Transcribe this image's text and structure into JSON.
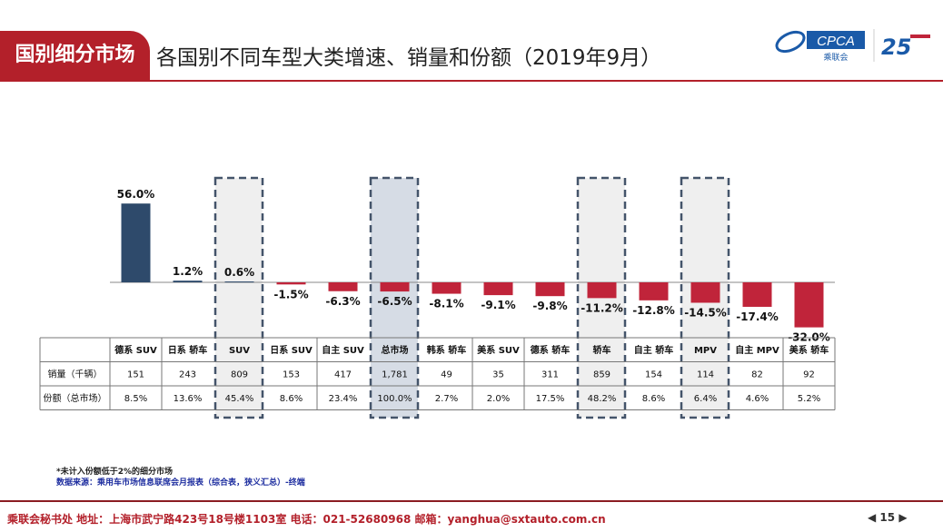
{
  "header": {
    "tag": "国别细分市场",
    "title": "各国别不同车型大类增速、销量和份额（2019年9月）",
    "logo_text": "CPCA",
    "logo_sub": "乘联会",
    "logo_anniv": "25"
  },
  "chart_data": {
    "type": "bar",
    "categories": [
      "德系 SUV",
      "日系 轿车",
      "SUV",
      "日系 SUV",
      "自主 SUV",
      "总市场",
      "韩系 轿车",
      "美系 SUV",
      "德系 轿车",
      "轿车",
      "自主 轿车",
      "MPV",
      "自主 MPV",
      "美系 轿车"
    ],
    "values": [
      56.0,
      1.2,
      0.6,
      -1.5,
      -6.3,
      -6.5,
      -8.1,
      -9.1,
      -9.8,
      -11.2,
      -12.8,
      -14.5,
      -17.4,
      -32.0
    ],
    "labels": [
      "56.0%",
      "1.2%",
      "0.6%",
      "-1.5%",
      "-6.3%",
      "-6.5%",
      "-8.1%",
      "-9.1%",
      "-9.8%",
      "-11.2%",
      "-12.8%",
      "-14.5%",
      "-17.4%",
      "-32.0%"
    ],
    "highlighted": [
      "SUV",
      "总市场",
      "轿车",
      "MPV"
    ],
    "colors": {
      "positive": "#2e4a6b",
      "negative": "#c0243a",
      "highlight_fill": "#efefef",
      "total_fill": "#d6dce5"
    },
    "table": {
      "rows": [
        {
          "label": "销量（千辆）",
          "values": [
            "151",
            "243",
            "809",
            "153",
            "417",
            "1,781",
            "49",
            "35",
            "311",
            "859",
            "154",
            "114",
            "82",
            "92"
          ]
        },
        {
          "label": "份额（总市场）",
          "values": [
            "8.5%",
            "13.6%",
            "45.4%",
            "8.6%",
            "23.4%",
            "100.0%",
            "2.7%",
            "2.0%",
            "17.5%",
            "48.2%",
            "8.6%",
            "6.4%",
            "4.6%",
            "5.2%"
          ]
        }
      ]
    }
  },
  "notes": {
    "note1": "*未计入份额低于2%的细分市场",
    "note2": "数据来源：乘用车市场信息联席会月报表（综合表，狭义汇总）-终端"
  },
  "footer": {
    "text": "乘联会秘书处  地址：上海市武宁路423号18号楼1103室  电话：021-52680968  邮箱：",
    "email": "yanghua@sxtauto.com.cn",
    "page": "15"
  }
}
